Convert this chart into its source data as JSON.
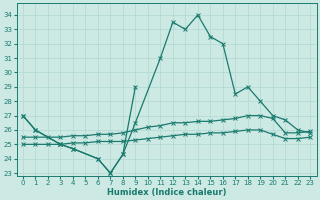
{
  "x_full": [
    0,
    1,
    2,
    3,
    4,
    5,
    6,
    7,
    8,
    9,
    10,
    11,
    12,
    13,
    14,
    15,
    16,
    17,
    18,
    19,
    20,
    21,
    22,
    23
  ],
  "curve_main": [
    27,
    26,
    null,
    25,
    24.7,
    null,
    24,
    23,
    24.3,
    26.5,
    null,
    31,
    33.5,
    33,
    34,
    32.5,
    32,
    28.5,
    29,
    28,
    27,
    26.7,
    26,
    25.8
  ],
  "curve_mid": [
    27,
    26,
    null,
    25,
    24.7,
    null,
    24,
    23,
    24.3,
    29,
    null,
    null,
    null,
    null,
    null,
    null,
    null,
    null,
    null,
    null,
    null,
    null,
    null,
    null
  ],
  "curve_upper_flat": [
    25.5,
    25.5,
    25.5,
    25.5,
    25.6,
    25.6,
    25.7,
    25.7,
    25.8,
    26.0,
    26.2,
    26.3,
    26.5,
    26.5,
    26.6,
    26.6,
    26.7,
    26.8,
    27.0,
    27.0,
    26.8,
    25.8,
    25.8,
    25.9
  ],
  "curve_lower_flat": [
    25.0,
    25.0,
    25.0,
    25.0,
    25.1,
    25.1,
    25.2,
    25.2,
    25.2,
    25.3,
    25.4,
    25.5,
    25.6,
    25.7,
    25.7,
    25.8,
    25.8,
    25.9,
    26.0,
    26.0,
    25.7,
    25.4,
    25.4,
    25.5
  ],
  "line_color": "#1a7a6e",
  "bg_color": "#cce9e4",
  "grid_color": "#b0d8d2",
  "ylim": [
    22.8,
    34.8
  ],
  "xlim": [
    -0.5,
    23.5
  ],
  "yticks": [
    23,
    24,
    25,
    26,
    27,
    28,
    29,
    30,
    31,
    32,
    33,
    34
  ],
  "xticks": [
    0,
    1,
    2,
    3,
    4,
    5,
    6,
    7,
    8,
    9,
    10,
    11,
    12,
    13,
    14,
    15,
    16,
    17,
    18,
    19,
    20,
    21,
    22,
    23
  ],
  "xlabel": "Humidex (Indice chaleur)",
  "marker": "x",
  "markersize": 2.5,
  "linewidth": 0.9
}
